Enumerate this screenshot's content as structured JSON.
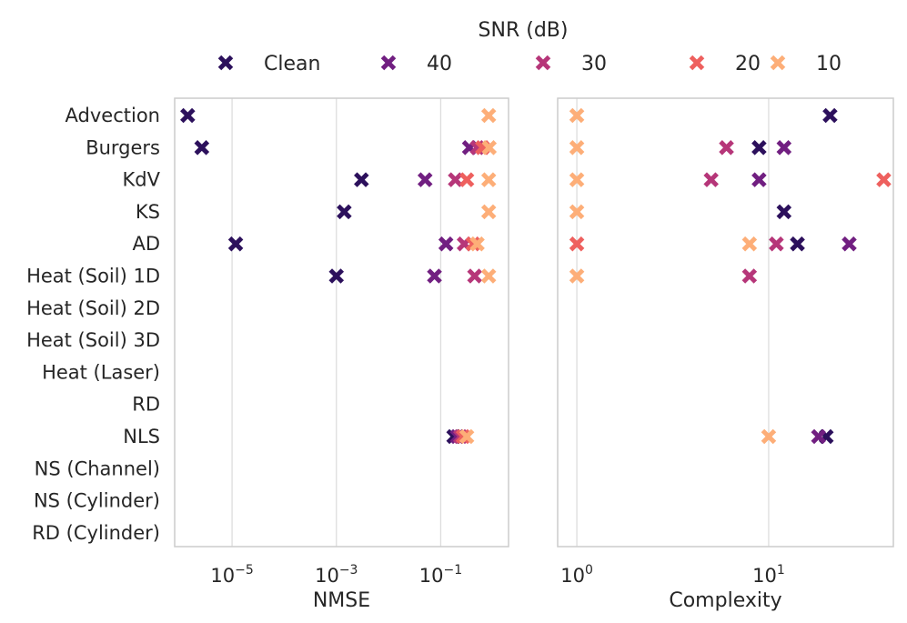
{
  "legend": {
    "title": "SNR (dB)",
    "entries": [
      {
        "label": "Clean",
        "color": "#2c105c"
      },
      {
        "label": "40",
        "color": "#711f81"
      },
      {
        "label": "30",
        "color": "#b63679"
      },
      {
        "label": "20",
        "color": "#ee605e"
      },
      {
        "label": "10",
        "color": "#fdae78"
      }
    ]
  },
  "marker_icon": "x-marker-icon",
  "chart_data": [
    {
      "type": "scatter",
      "xlabel": "NMSE",
      "xscale": "log",
      "xlim_log10": [
        -6.1,
        0.3
      ],
      "xticks": [
        {
          "base": "10",
          "exp": "−5",
          "value_log10": -5
        },
        {
          "base": "10",
          "exp": "−3",
          "value_log10": -3
        },
        {
          "base": "10",
          "exp": "−1",
          "value_log10": -1
        }
      ],
      "categories": [
        "Advection",
        "Burgers",
        "KdV",
        "KS",
        "AD",
        "Heat (Soil) 1D",
        "Heat (Soil) 2D",
        "Heat (Soil) 3D",
        "Heat (Laser)",
        "RD",
        "NLS",
        "NS (Channel)",
        "NS (Cylinder)",
        "RD (Cylinder)"
      ],
      "grid": "x",
      "series": [
        {
          "name": "Clean",
          "points": [
            [
              "Advection",
              -5.85
            ],
            [
              "Burgers",
              -5.58
            ],
            [
              "KdV",
              -2.52
            ],
            [
              "KS",
              -2.85
            ],
            [
              "AD",
              -4.93
            ],
            [
              "Heat (Soil) 1D",
              -3.0
            ],
            [
              "NLS",
              -0.75
            ]
          ]
        },
        {
          "name": "40",
          "points": [
            [
              "Burgers",
              -0.45
            ],
            [
              "KdV",
              -1.3
            ],
            [
              "AD",
              -0.9
            ],
            [
              "Heat (Soil) 1D",
              -1.12
            ],
            [
              "NLS",
              -0.68
            ]
          ]
        },
        {
          "name": "30",
          "points": [
            [
              "Burgers",
              -0.3
            ],
            [
              "KdV",
              -0.72
            ],
            [
              "AD",
              -0.55
            ],
            [
              "Heat (Soil) 1D",
              -0.35
            ],
            [
              "NLS",
              -0.62
            ]
          ]
        },
        {
          "name": "20",
          "points": [
            [
              "Burgers",
              -0.2
            ],
            [
              "KdV",
              -0.5
            ],
            [
              "AD",
              -0.38
            ],
            [
              "NLS",
              -0.57
            ]
          ]
        },
        {
          "name": "10",
          "points": [
            [
              "Advection",
              -0.08
            ],
            [
              "Burgers",
              -0.07
            ],
            [
              "KdV",
              -0.08
            ],
            [
              "KS",
              -0.08
            ],
            [
              "AD",
              -0.3
            ],
            [
              "Heat (Soil) 1D",
              -0.08
            ],
            [
              "NLS",
              -0.5
            ]
          ]
        }
      ]
    },
    {
      "type": "scatter",
      "xlabel": "Complexity",
      "xscale": "log",
      "xlim_log10": [
        -0.1,
        1.65
      ],
      "xticks": [
        {
          "base": "10",
          "exp": "0",
          "value_log10": 0
        },
        {
          "base": "10",
          "exp": "1",
          "value_log10": 1
        }
      ],
      "categories": [
        "Advection",
        "Burgers",
        "KdV",
        "KS",
        "AD",
        "Heat (Soil) 1D",
        "Heat (Soil) 2D",
        "Heat (Soil) 3D",
        "Heat (Laser)",
        "RD",
        "NLS",
        "NS (Channel)",
        "NS (Cylinder)",
        "RD (Cylinder)"
      ],
      "grid": "x",
      "series": [
        {
          "name": "Clean",
          "points": [
            [
              "Advection",
              1.32
            ],
            [
              "Burgers",
              0.95
            ],
            [
              "KS",
              1.08
            ],
            [
              "AD",
              1.15
            ],
            [
              "NLS",
              1.3
            ]
          ]
        },
        {
          "name": "40",
          "points": [
            [
              "Burgers",
              1.08
            ],
            [
              "KdV",
              0.95
            ],
            [
              "AD",
              1.42
            ],
            [
              "NLS",
              1.26
            ]
          ]
        },
        {
          "name": "30",
          "points": [
            [
              "Burgers",
              0.78
            ],
            [
              "KdV",
              0.7
            ],
            [
              "AD",
              1.04
            ],
            [
              "Heat (Soil) 1D",
              0.9
            ]
          ]
        },
        {
          "name": "20",
          "points": [
            [
              "KdV",
              1.6
            ],
            [
              "AD",
              0.0
            ]
          ]
        },
        {
          "name": "10",
          "points": [
            [
              "Advection",
              0.0
            ],
            [
              "Burgers",
              0.0
            ],
            [
              "KdV",
              0.0
            ],
            [
              "KS",
              0.0
            ],
            [
              "AD",
              0.9
            ],
            [
              "Heat (Soil) 1D",
              0.0
            ],
            [
              "NLS",
              1.0
            ]
          ]
        }
      ]
    }
  ]
}
